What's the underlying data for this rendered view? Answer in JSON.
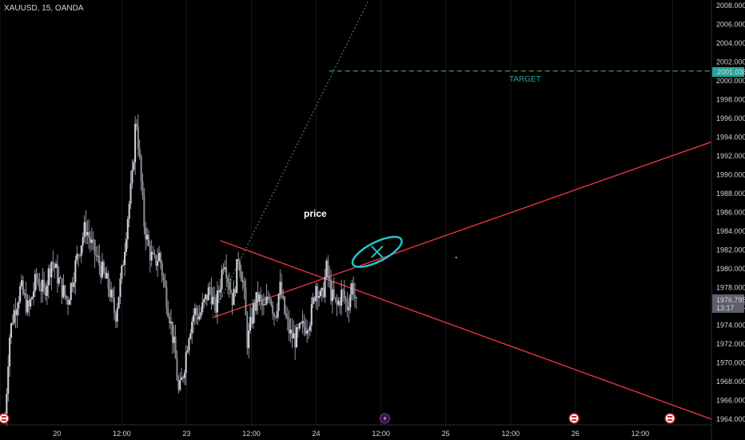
{
  "header": {
    "symbol": "XAUUSD, 15, OANDA"
  },
  "colors": {
    "background": "#000000",
    "candle": "#b2b5be",
    "trendline": "#f23645",
    "projection": "#4caf50",
    "target": "#26a69a",
    "ellipse": "#22c4c9",
    "grid": "#1c1c1c",
    "axis_text": "#d1d4dc"
  },
  "price_axis": {
    "ticks": [
      "1964.000",
      "1966.000",
      "1968.000",
      "1970.000",
      "1972.000",
      "1974.000",
      "1976.000",
      "1978.000",
      "1980.000",
      "1982.000",
      "1984.000",
      "1986.000",
      "1988.000",
      "1990.000",
      "1992.000",
      "1994.000",
      "1996.000",
      "1998.000",
      "2000.000",
      "2002.000",
      "2004.000",
      "2006.000",
      "2008.000"
    ],
    "current_price": "1976.795",
    "countdown": "13:17",
    "target_price": "2001.038"
  },
  "time_axis": {
    "labels": [
      {
        "label": "20",
        "t": 0.5
      },
      {
        "label": "12:00",
        "t": 1.0
      },
      {
        "label": "23",
        "t": 1.5
      },
      {
        "label": "12:00",
        "t": 2.0
      },
      {
        "label": "24",
        "t": 2.5
      },
      {
        "label": "12:00",
        "t": 3.0
      },
      {
        "label": "25",
        "t": 3.5
      },
      {
        "label": "12:00",
        "t": 4.0
      },
      {
        "label": "26",
        "t": 4.5
      },
      {
        "label": "12:00",
        "t": 5.0
      }
    ],
    "event_icons": [
      {
        "kind": "us-flag-icon",
        "t": 0.09
      },
      {
        "kind": "lightning-icon",
        "t": 3.03
      },
      {
        "kind": "us-flag-icon",
        "t": 4.49
      },
      {
        "kind": "us-flag-icon",
        "t": 5.23
      }
    ]
  },
  "annotations": {
    "price_label": "price",
    "target_label": "TARGET"
  },
  "chart_data": {
    "type": "candlestick",
    "title": "XAUUSD, 15, OANDA",
    "ylim": [
      1964,
      2009
    ],
    "xlim": [
      0.06,
      5.55
    ],
    "series": [
      {
        "name": "XAUUSD",
        "ohlc_path": [
          [
            0.1,
            1964.0
          ],
          [
            0.13,
            1972.5
          ],
          [
            0.16,
            1975.0
          ],
          [
            0.22,
            1978.0
          ],
          [
            0.28,
            1975.5
          ],
          [
            0.34,
            1979.0
          ],
          [
            0.4,
            1977.5
          ],
          [
            0.46,
            1981.0
          ],
          [
            0.52,
            1978.5
          ],
          [
            0.58,
            1976.5
          ],
          [
            0.66,
            1981.5
          ],
          [
            0.72,
            1984.5
          ],
          [
            0.78,
            1982.0
          ],
          [
            0.84,
            1980.0
          ],
          [
            0.9,
            1978.0
          ],
          [
            0.95,
            1975.0
          ],
          [
            1.0,
            1979.5
          ],
          [
            1.04,
            1985.0
          ],
          [
            1.08,
            1989.5
          ],
          [
            1.11,
            1996.5
          ],
          [
            1.14,
            1991.0
          ],
          [
            1.17,
            1985.0
          ],
          [
            1.21,
            1982.0
          ],
          [
            1.25,
            1980.5
          ],
          [
            1.29,
            1981.5
          ],
          [
            1.33,
            1978.0
          ],
          [
            1.37,
            1975.0
          ],
          [
            1.41,
            1971.0
          ],
          [
            1.44,
            1966.5
          ],
          [
            1.48,
            1969.5
          ],
          [
            1.52,
            1973.5
          ],
          [
            1.56,
            1975.5
          ],
          [
            1.6,
            1975.0
          ],
          [
            1.64,
            1976.5
          ],
          [
            1.68,
            1978.0
          ],
          [
            1.72,
            1975.5
          ],
          [
            1.76,
            1978.5
          ],
          [
            1.79,
            1981.5
          ],
          [
            1.82,
            1979.0
          ],
          [
            1.86,
            1976.5
          ],
          [
            1.9,
            1981.5
          ],
          [
            1.94,
            1978.0
          ],
          [
            1.97,
            1972.0
          ],
          [
            2.01,
            1975.5
          ],
          [
            2.05,
            1977.0
          ],
          [
            2.1,
            1975.5
          ],
          [
            2.14,
            1977.5
          ],
          [
            2.18,
            1975.0
          ],
          [
            2.22,
            1978.0
          ],
          [
            2.26,
            1975.0
          ],
          [
            2.3,
            1973.0
          ],
          [
            2.34,
            1972.5
          ],
          [
            2.38,
            1973.5
          ],
          [
            2.42,
            1974.0
          ],
          [
            2.46,
            1975.0
          ],
          [
            2.5,
            1978.5
          ],
          [
            2.54,
            1976.5
          ],
          [
            2.58,
            1980.0
          ],
          [
            2.62,
            1977.0
          ],
          [
            2.66,
            1976.0
          ],
          [
            2.7,
            1977.5
          ],
          [
            2.74,
            1976.0
          ],
          [
            2.78,
            1978.5
          ],
          [
            2.81,
            1976.0
          ]
        ]
      }
    ],
    "drawings": [
      {
        "type": "trendline",
        "name": "descending-trendline",
        "from": [
          1.76,
          1983.0
        ],
        "to": [
          5.55,
          1964.0
        ]
      },
      {
        "type": "trendline",
        "name": "ascending-trendline",
        "from": [
          1.7,
          1974.8
        ],
        "to": [
          5.55,
          1993.5
        ]
      },
      {
        "type": "projection",
        "name": "dotted-projection",
        "from": [
          1.7,
          1975.0
        ],
        "to": [
          2.92,
          2009.0
        ]
      },
      {
        "type": "target",
        "name": "target-line",
        "price": 2001.038,
        "from": 2.6,
        "to": 5.55
      },
      {
        "type": "ellipse",
        "name": "cross-ellipse",
        "center": [
          2.97,
          1981.8
        ]
      },
      {
        "type": "dot",
        "name": "small-dot",
        "at": [
          3.58,
          1981.2
        ]
      }
    ]
  }
}
